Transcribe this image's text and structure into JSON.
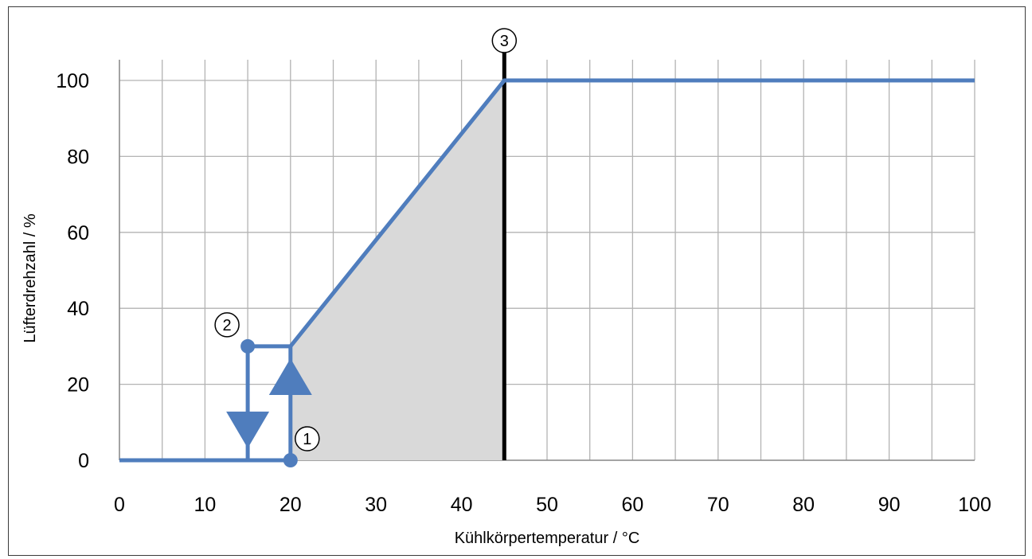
{
  "chart_data": {
    "type": "line",
    "xlabel": "Kühlkörpertemperatur / °C",
    "ylabel": "Lüfterdrehzahl / %",
    "xlim": [
      0,
      100
    ],
    "ylim": [
      0,
      100
    ],
    "x_ticks": [
      "0",
      "10",
      "20",
      "30",
      "40",
      "50",
      "60",
      "70",
      "80",
      "90",
      "100"
    ],
    "y_ticks": [
      "0",
      "20",
      "40",
      "60",
      "80",
      "100"
    ],
    "grid": true,
    "x_minor_step": 5,
    "y_major_step": 20,
    "colors": {
      "line": "#4f7dbd",
      "fill": "#d9d9d9",
      "grid": "#b3b3b3",
      "limit": "#000000"
    },
    "series": [
      {
        "points": [
          [
            0,
            0
          ],
          [
            20,
            0
          ]
        ]
      },
      {
        "points": [
          [
            15,
            30
          ],
          [
            20,
            30
          ],
          [
            45,
            100
          ],
          [
            100,
            100
          ]
        ]
      },
      {
        "points": [
          [
            15,
            30
          ],
          [
            15,
            0
          ]
        ]
      },
      {
        "points": [
          [
            20,
            0
          ],
          [
            20,
            30
          ]
        ]
      }
    ],
    "shaded_region": [
      [
        20,
        0
      ],
      [
        20,
        30
      ],
      [
        45,
        100
      ],
      [
        45,
        0
      ]
    ],
    "limit_line_x": 45,
    "direction_arrows": [
      {
        "x": 15,
        "y": 8,
        "direction": "down"
      },
      {
        "x": 20,
        "y": 22,
        "direction": "up"
      }
    ],
    "markers": [
      {
        "label": "①",
        "x": 20,
        "y": 0,
        "dot": true
      },
      {
        "label": "②",
        "x": 15,
        "y": 30,
        "dot": true
      },
      {
        "label": "③",
        "x": 45,
        "y": 100,
        "dot": false
      }
    ]
  }
}
